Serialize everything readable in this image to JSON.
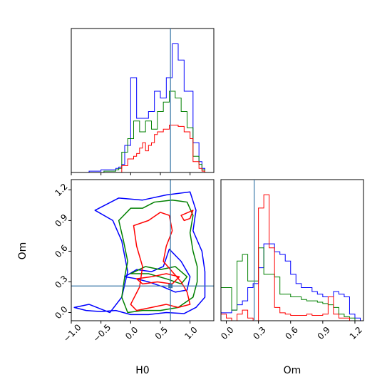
{
  "chart_data": {
    "type": "corner",
    "parameters": [
      "H0",
      "Om"
    ],
    "truth": {
      "H0": 0.67,
      "Om": 0.26,
      "color": "#3a78a8"
    },
    "series_colors": {
      "blue": "#0000ff",
      "green": "#008000",
      "red": "#ff0000"
    },
    "panels": {
      "h0_hist": {
        "xlim": [
          -1.0,
          1.4
        ],
        "x_ticks": [
          -1.0,
          -0.5,
          0.0,
          0.5,
          1.0
        ],
        "bin_edges": [
          -1.0,
          -0.95,
          -0.9,
          -0.85,
          -0.8,
          -0.75,
          -0.7,
          -0.65,
          -0.6,
          -0.55,
          -0.5,
          -0.45,
          -0.4,
          -0.35,
          -0.3,
          -0.25,
          -0.2,
          -0.15,
          -0.1,
          -0.05,
          0.0,
          0.05,
          0.1,
          0.15,
          0.2,
          0.25,
          0.3,
          0.35,
          0.4,
          0.45,
          0.5,
          0.55,
          0.6,
          0.65,
          0.7,
          0.75,
          0.8,
          0.85,
          0.9,
          0.95,
          1.0,
          1.05,
          1.1,
          1.15,
          1.2,
          1.25,
          1.3,
          1.35,
          1.4
        ],
        "series": [
          {
            "color": "blue",
            "counts": [
              0,
              0,
              0,
              0,
              0,
              0,
              0.01,
              0.01,
              0.01,
              0.01,
              0.02,
              0.02,
              0.02,
              0.02,
              0.02,
              0.03,
              0.04,
              0.06,
              0.2,
              0.2,
              0.7,
              0.7,
              0.4,
              0.4,
              0.4,
              0.4,
              0.45,
              0.45,
              0.6,
              0.6,
              0.55,
              0.55,
              0.7,
              0.7,
              0.95,
              0.95,
              0.83,
              0.83,
              0.6,
              0.6,
              0.6,
              0.22,
              0.22,
              0.08,
              0.03,
              0.0,
              0.0,
              0.0
            ]
          },
          {
            "color": "green",
            "counts": [
              0,
              0,
              0,
              0,
              0,
              0,
              0,
              0,
              0,
              0,
              0,
              0.01,
              0.01,
              0.01,
              0.01,
              0.02,
              0.03,
              0.15,
              0.15,
              0.25,
              0.25,
              0.38,
              0.38,
              0.3,
              0.3,
              0.38,
              0.38,
              0.32,
              0.32,
              0.45,
              0.45,
              0.52,
              0.52,
              0.6,
              0.6,
              0.55,
              0.55,
              0.45,
              0.45,
              0.33,
              0.33,
              0.12,
              0.12,
              0.06,
              0.02,
              0,
              0,
              0
            ]
          },
          {
            "color": "red",
            "counts": [
              0,
              0,
              0,
              0,
              0,
              0,
              0,
              0,
              0,
              0,
              0,
              0,
              0,
              0,
              0,
              0,
              0,
              0.05,
              0.05,
              0.1,
              0.1,
              0.12,
              0.14,
              0.18,
              0.22,
              0.16,
              0.2,
              0.22,
              0.28,
              0.3,
              0.3,
              0.32,
              0.32,
              0.35,
              0.35,
              0.35,
              0.34,
              0.34,
              0.3,
              0.3,
              0.25,
              0.08,
              0.08,
              0.03,
              0.01,
              0,
              0,
              0
            ]
          }
        ]
      },
      "om_hist": {
        "xlim": [
          -0.05,
          1.28
        ],
        "x_ticks": [
          0.0,
          0.3,
          0.6,
          0.9,
          1.2
        ],
        "bin_edges": [
          -0.05,
          0.0,
          0.05,
          0.1,
          0.15,
          0.2,
          0.25,
          0.3,
          0.35,
          0.4,
          0.45,
          0.5,
          0.55,
          0.6,
          0.65,
          0.7,
          0.75,
          0.8,
          0.85,
          0.9,
          0.95,
          1.0,
          1.05,
          1.1,
          1.15,
          1.2,
          1.25
        ],
        "series": [
          {
            "color": "blue",
            "counts": [
              0.06,
              0.06,
              0.08,
              0.12,
              0.15,
              0.25,
              0.28,
              0.4,
              0.58,
              0.58,
              0.52,
              0.5,
              0.45,
              0.35,
              0.28,
              0.25,
              0.25,
              0.22,
              0.2,
              0.18,
              0.18,
              0.22,
              0.2,
              0.18,
              0.05,
              0.02
            ]
          },
          {
            "color": "green",
            "counts": [
              0.25,
              0.25,
              0.08,
              0.45,
              0.5,
              0.3,
              0.3,
              0.55,
              0.35,
              0.35,
              0.33,
              0.2,
              0.2,
              0.18,
              0.18,
              0.16,
              0.15,
              0.15,
              0.14,
              0.13,
              0.12,
              0.1,
              0.05,
              0.03,
              0.02,
              0.0
            ]
          },
          {
            "color": "red",
            "counts": [
              0.05,
              0.02,
              0.0,
              0.05,
              0.08,
              0.02,
              0.0,
              0.85,
              0.95,
              0.55,
              0.1,
              0.06,
              0.05,
              0.04,
              0.04,
              0.04,
              0.05,
              0.04,
              0.04,
              0.05,
              0.18,
              0.05,
              0.02,
              0.02,
              0.0,
              0.0
            ]
          }
        ]
      },
      "joint": {
        "xlim": [
          -1.0,
          1.4
        ],
        "ylim": [
          -0.08,
          1.3
        ],
        "x_ticks": [
          -1.0,
          -0.5,
          0.0,
          0.5,
          1.0
        ],
        "y_ticks": [
          0.0,
          0.3,
          0.6,
          0.9,
          1.2
        ],
        "contours": [
          {
            "color": "blue",
            "points": [
              [
                -0.6,
                1.0
              ],
              [
                -0.2,
                1.12
              ],
              [
                0.2,
                1.1
              ],
              [
                0.6,
                1.15
              ],
              [
                1.0,
                1.18
              ],
              [
                1.1,
                1.0
              ],
              [
                1.05,
                0.8
              ],
              [
                1.2,
                0.6
              ],
              [
                1.25,
                0.4
              ],
              [
                1.25,
                0.15
              ],
              [
                1.1,
                0.05
              ],
              [
                0.9,
                -0.01
              ],
              [
                0.6,
                0.0
              ],
              [
                0.3,
                -0.02
              ],
              [
                0.0,
                -0.02
              ],
              [
                -0.25,
                0.02
              ],
              [
                -0.5,
                0.01
              ],
              [
                -0.75,
                0.02
              ],
              [
                -0.95,
                0.05
              ],
              [
                -0.7,
                0.08
              ],
              [
                -0.35,
                0.0
              ],
              [
                -0.15,
                0.15
              ],
              [
                -0.05,
                0.4
              ],
              [
                -0.15,
                0.7
              ],
              [
                -0.3,
                0.9
              ],
              [
                -0.6,
                1.0
              ]
            ]
          },
          {
            "color": "blue",
            "points": [
              [
                -0.1,
                0.35
              ],
              [
                0.1,
                0.33
              ],
              [
                0.3,
                0.3
              ],
              [
                0.55,
                0.25
              ],
              [
                0.75,
                0.2
              ],
              [
                0.95,
                0.22
              ],
              [
                1.0,
                0.35
              ],
              [
                0.85,
                0.5
              ],
              [
                0.65,
                0.62
              ],
              [
                0.55,
                0.45
              ],
              [
                0.35,
                0.4
              ],
              [
                0.1,
                0.42
              ],
              [
                -0.1,
                0.35
              ]
            ]
          },
          {
            "color": "green",
            "points": [
              [
                -0.2,
                0.9
              ],
              [
                0.0,
                1.02
              ],
              [
                0.2,
                1.02
              ],
              [
                0.4,
                1.08
              ],
              [
                0.7,
                1.1
              ],
              [
                0.95,
                1.08
              ],
              [
                1.05,
                0.95
              ],
              [
                1.0,
                0.78
              ],
              [
                1.05,
                0.6
              ],
              [
                1.12,
                0.45
              ],
              [
                1.12,
                0.3
              ],
              [
                1.05,
                0.15
              ],
              [
                0.8,
                0.05
              ],
              [
                0.5,
                0.02
              ],
              [
                0.2,
                0.02
              ],
              [
                -0.05,
                0.0
              ],
              [
                -0.15,
                0.15
              ],
              [
                -0.1,
                0.35
              ],
              [
                -0.05,
                0.5
              ],
              [
                -0.12,
                0.7
              ],
              [
                -0.2,
                0.9
              ]
            ]
          },
          {
            "color": "green",
            "points": [
              [
                0.0,
                0.38
              ],
              [
                0.3,
                0.38
              ],
              [
                0.6,
                0.33
              ],
              [
                0.85,
                0.28
              ],
              [
                0.95,
                0.35
              ],
              [
                0.75,
                0.45
              ],
              [
                0.5,
                0.42
              ],
              [
                0.25,
                0.45
              ],
              [
                0.0,
                0.38
              ]
            ]
          },
          {
            "color": "red",
            "points": [
              [
                0.05,
                0.85
              ],
              [
                0.3,
                0.9
              ],
              [
                0.5,
                0.98
              ],
              [
                0.65,
                0.95
              ],
              [
                0.7,
                0.8
              ],
              [
                0.6,
                0.65
              ],
              [
                0.55,
                0.5
              ],
              [
                0.7,
                0.4
              ],
              [
                0.85,
                0.3
              ],
              [
                0.95,
                0.2
              ],
              [
                1.0,
                0.08
              ],
              [
                0.8,
                0.05
              ],
              [
                0.6,
                0.08
              ],
              [
                0.35,
                0.05
              ],
              [
                0.1,
                0.02
              ],
              [
                0.0,
                0.08
              ],
              [
                0.15,
                0.25
              ],
              [
                0.2,
                0.45
              ],
              [
                0.1,
                0.65
              ],
              [
                0.05,
                0.85
              ]
            ]
          },
          {
            "color": "red",
            "points": [
              [
                0.1,
                0.33
              ],
              [
                0.35,
                0.35
              ],
              [
                0.6,
                0.38
              ],
              [
                0.82,
                0.35
              ],
              [
                0.7,
                0.28
              ],
              [
                0.45,
                0.3
              ],
              [
                0.2,
                0.28
              ],
              [
                0.1,
                0.33
              ]
            ]
          },
          {
            "color": "red",
            "points": [
              [
                0.85,
                0.95
              ],
              [
                1.05,
                1.0
              ],
              [
                1.0,
                0.92
              ],
              [
                0.9,
                0.9
              ],
              [
                0.85,
                0.95
              ]
            ]
          }
        ]
      }
    }
  },
  "labels": {
    "x_joint": "H0",
    "y_joint": "Om",
    "x_om": "Om"
  },
  "tick_labels": {
    "h0": [
      "−1.0",
      "−0.5",
      "0.0",
      "0.5",
      "1.0"
    ],
    "om": [
      "0.0",
      "0.3",
      "0.6",
      "0.9",
      "1.2"
    ]
  }
}
